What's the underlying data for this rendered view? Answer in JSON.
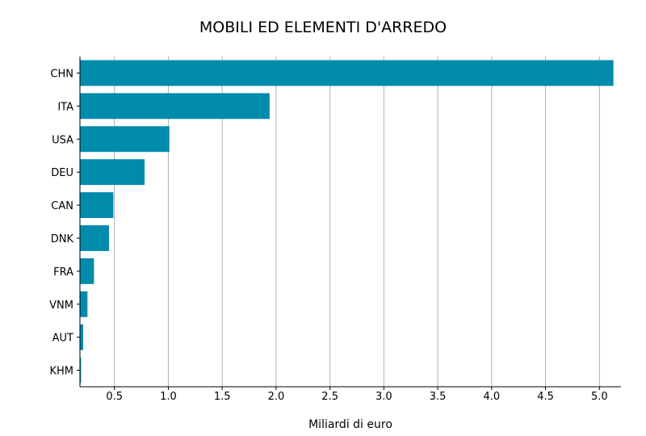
{
  "chart_data": {
    "type": "bar",
    "orientation": "horizontal",
    "title": "MOBILI ED ELEMENTI D'ARREDO",
    "xlabel": "Miliardi di euro",
    "ylabel": "",
    "categories": [
      "CHN",
      "ITA",
      "USA",
      "DEU",
      "CAN",
      "DNK",
      "FRA",
      "VNM",
      "AUT",
      "KHM"
    ],
    "values": [
      5.13,
      1.94,
      1.01,
      0.78,
      0.49,
      0.45,
      0.31,
      0.25,
      0.21,
      0.19
    ],
    "xlim": [
      0.18,
      5.2
    ],
    "xticks": [
      0.5,
      1.0,
      1.5,
      2.0,
      2.5,
      3.0,
      3.5,
      4.0,
      4.5,
      5.0
    ],
    "xtick_labels": [
      "0.5",
      "1.0",
      "1.5",
      "2.0",
      "2.5",
      "3.0",
      "3.5",
      "4.0",
      "4.5",
      "5.0"
    ],
    "grid": "vertical",
    "legend": "none",
    "bar_color": "#008bad",
    "grid_color": "#b0b0b0"
  }
}
